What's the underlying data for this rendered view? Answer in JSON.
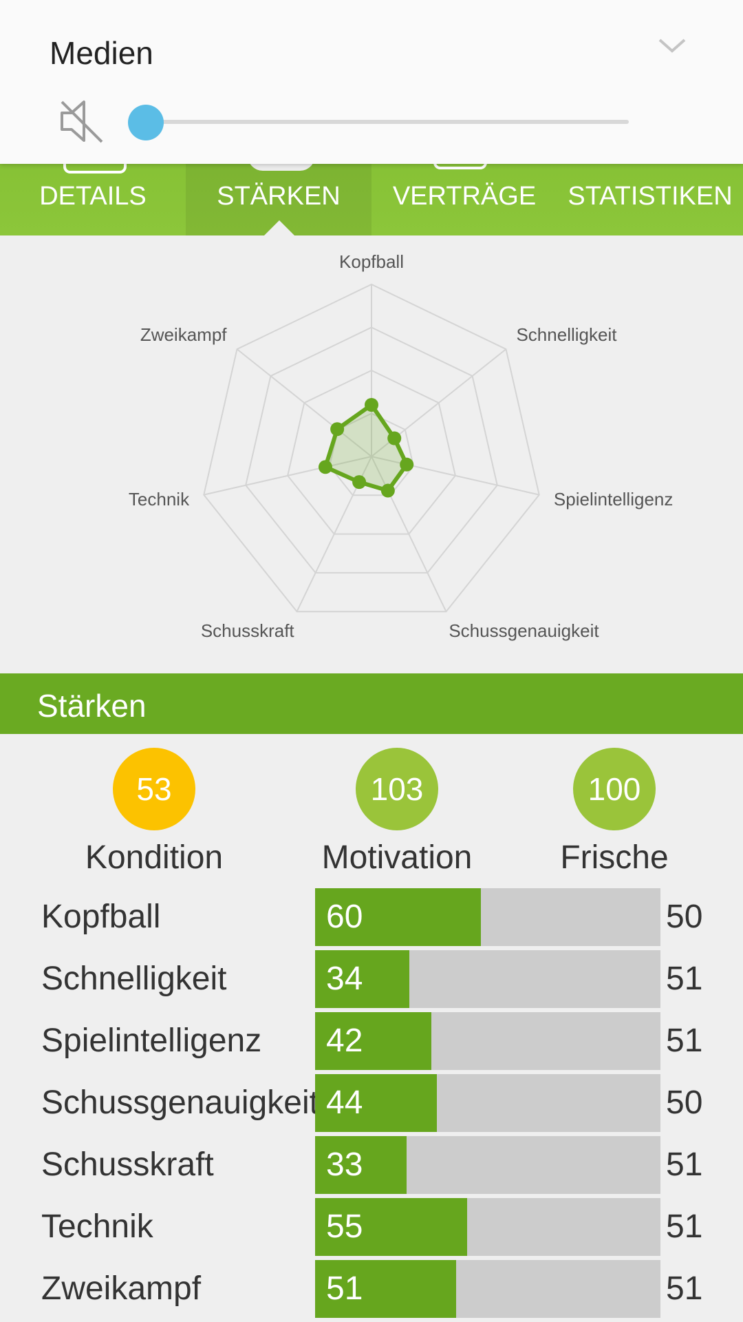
{
  "volume": {
    "title": "Medien",
    "level": 0,
    "muted": true,
    "knob_color": "#5bbde6"
  },
  "tabs": [
    {
      "label": "DETAILS",
      "active": false
    },
    {
      "label": "STÄRKEN",
      "active": true
    },
    {
      "label": "VERTRÄGE",
      "active": false
    },
    {
      "label": "STATISTIKEN",
      "active": false
    }
  ],
  "radar": {
    "axes": [
      "Kopfball",
      "Schnelligkeit",
      "Spielintelligenz",
      "Schussgenauigkeit",
      "Schusskraft",
      "Technik",
      "Zweikampf"
    ],
    "values": [
      60,
      34,
      42,
      44,
      33,
      55,
      51
    ],
    "max": 200,
    "rings": 4,
    "color": "#66a61e"
  },
  "section": {
    "title": "Stärken"
  },
  "summary": [
    {
      "value": "53",
      "label": "Kondition",
      "color": "#fcc200"
    },
    {
      "value": "103",
      "label": "Motivation",
      "color": "#9ac43a"
    },
    {
      "value": "100",
      "label": "Frische",
      "color": "#9ac43a"
    }
  ],
  "stats": [
    {
      "name": "Kopfball",
      "value": "60",
      "compare": "50"
    },
    {
      "name": "Schnelligkeit",
      "value": "34",
      "compare": "51"
    },
    {
      "name": "Spielintelligenz",
      "value": "42",
      "compare": "51"
    },
    {
      "name": "Schussgenauigkeit",
      "value": "44",
      "compare": "50"
    },
    {
      "name": "Schusskraft",
      "value": "33",
      "compare": "51"
    },
    {
      "name": "Technik",
      "value": "55",
      "compare": "51"
    },
    {
      "name": "Zweikampf",
      "value": "51",
      "compare": "51"
    }
  ],
  "stat_bar_max": 125
}
